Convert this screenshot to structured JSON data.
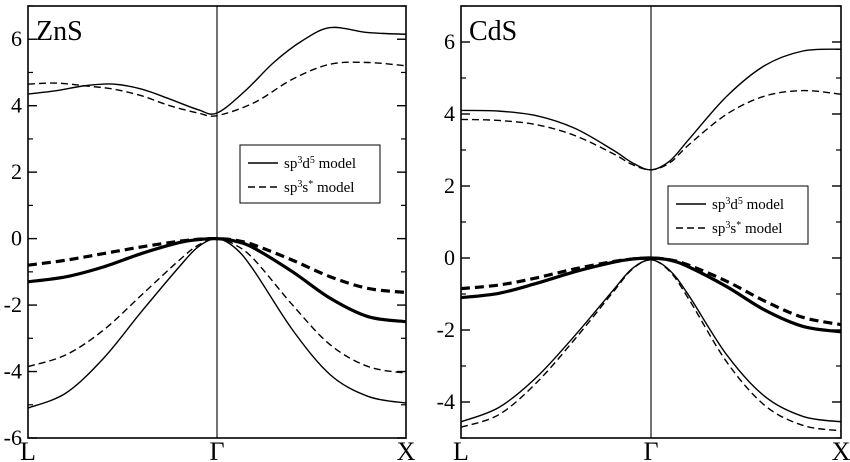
{
  "chart_data": [
    {
      "type": "line",
      "title": "ZnS",
      "xlabel": "",
      "ylabel": "",
      "ylim": [
        -6,
        7
      ],
      "yticks": [
        -6,
        -4,
        -2,
        0,
        2,
        4,
        6
      ],
      "xticks": [
        {
          "pos": 0,
          "label": "L"
        },
        {
          "pos": 1,
          "label": "Γ"
        },
        {
          "pos": 2,
          "label": "X"
        }
      ],
      "xlim": [
        0,
        2
      ],
      "legend_position": "center-right",
      "legend": [
        {
          "text_main": "sp",
          "sup1": "3",
          "text_mid": "d",
          "sup2": "5",
          "text_end": " model",
          "style": "solid"
        },
        {
          "text_main": "sp",
          "sup1": "3",
          "text_mid": "s",
          "sup2": "*",
          "text_end": " model",
          "style": "dashed"
        }
      ],
      "series": [
        {
          "style": "solid",
          "width": "thin",
          "x": [
            0,
            0.15,
            0.3,
            0.45,
            0.6,
            0.75,
            0.9,
            1.0,
            1.15,
            1.3,
            1.45,
            1.6,
            1.8,
            2.0
          ],
          "y": [
            4.35,
            4.45,
            4.6,
            4.65,
            4.5,
            4.2,
            3.88,
            3.78,
            4.45,
            5.3,
            5.95,
            6.35,
            6.2,
            6.15
          ]
        },
        {
          "style": "dashed",
          "width": "thin",
          "x": [
            0,
            0.15,
            0.3,
            0.45,
            0.6,
            0.75,
            0.9,
            1.0,
            1.2,
            1.4,
            1.6,
            1.8,
            2.0
          ],
          "y": [
            4.65,
            4.68,
            4.6,
            4.5,
            4.3,
            4.0,
            3.78,
            3.7,
            4.1,
            4.8,
            5.25,
            5.3,
            5.2
          ]
        },
        {
          "style": "dashed",
          "width": "thick",
          "x": [
            0,
            0.2,
            0.4,
            0.6,
            0.8,
            0.9,
            1.0,
            1.1,
            1.2,
            1.4,
            1.6,
            1.8,
            2.0
          ],
          "y": [
            -0.8,
            -0.65,
            -0.45,
            -0.25,
            -0.08,
            -0.02,
            0,
            -0.05,
            -0.2,
            -0.65,
            -1.15,
            -1.5,
            -1.62
          ]
        },
        {
          "style": "solid",
          "width": "thick",
          "x": [
            0,
            0.2,
            0.4,
            0.6,
            0.8,
            0.9,
            1.0,
            1.1,
            1.2,
            1.4,
            1.6,
            1.8,
            2.0
          ],
          "y": [
            -1.3,
            -1.15,
            -0.85,
            -0.45,
            -0.12,
            -0.03,
            0,
            -0.08,
            -0.3,
            -1.0,
            -1.8,
            -2.35,
            -2.5
          ]
        },
        {
          "style": "dashed",
          "width": "thin",
          "x": [
            0,
            0.2,
            0.4,
            0.6,
            0.8,
            0.9,
            1.0,
            1.1,
            1.2,
            1.4,
            1.6,
            1.8,
            2.0
          ],
          "y": [
            -3.85,
            -3.5,
            -2.75,
            -1.7,
            -0.65,
            -0.2,
            0,
            -0.2,
            -0.65,
            -2.0,
            -3.2,
            -3.85,
            -4.05
          ]
        },
        {
          "style": "solid",
          "width": "thin",
          "x": [
            0,
            0.2,
            0.4,
            0.6,
            0.8,
            0.9,
            1.0,
            1.1,
            1.2,
            1.4,
            1.6,
            1.8,
            2.0
          ],
          "y": [
            -5.1,
            -4.65,
            -3.6,
            -2.2,
            -0.85,
            -0.25,
            0,
            -0.3,
            -1.0,
            -2.75,
            -4.1,
            -4.75,
            -4.95
          ]
        }
      ]
    },
    {
      "type": "line",
      "title": "CdS",
      "xlabel": "",
      "ylabel": "",
      "ylim": [
        -5,
        7
      ],
      "yticks": [
        -4,
        -2,
        0,
        2,
        4,
        6
      ],
      "xticks": [
        {
          "pos": 0,
          "label": "L"
        },
        {
          "pos": 1,
          "label": "Γ"
        },
        {
          "pos": 2,
          "label": "X"
        }
      ],
      "xlim": [
        0,
        2
      ],
      "legend_position": "center-right",
      "legend": [
        {
          "text_main": "sp",
          "sup1": "3",
          "text_mid": "d",
          "sup2": "5",
          "text_end": " model",
          "style": "solid"
        },
        {
          "text_main": "sp",
          "sup1": "3",
          "text_mid": "s",
          "sup2": "*",
          "text_end": " model",
          "style": "dashed"
        }
      ],
      "series": [
        {
          "style": "solid",
          "width": "thin",
          "x": [
            0,
            0.2,
            0.4,
            0.6,
            0.8,
            0.9,
            1.0,
            1.1,
            1.2,
            1.4,
            1.6,
            1.8,
            2.0
          ],
          "y": [
            4.1,
            4.08,
            3.95,
            3.6,
            3.0,
            2.65,
            2.45,
            2.7,
            3.3,
            4.5,
            5.35,
            5.75,
            5.8
          ]
        },
        {
          "style": "dashed",
          "width": "thin",
          "x": [
            0,
            0.2,
            0.4,
            0.6,
            0.8,
            0.9,
            1.0,
            1.1,
            1.2,
            1.4,
            1.6,
            1.8,
            2.0
          ],
          "y": [
            3.85,
            3.82,
            3.7,
            3.4,
            2.9,
            2.6,
            2.45,
            2.65,
            3.15,
            4.0,
            4.5,
            4.65,
            4.55
          ]
        },
        {
          "style": "dashed",
          "width": "thick",
          "x": [
            0,
            0.2,
            0.4,
            0.6,
            0.8,
            0.9,
            1.0,
            1.1,
            1.2,
            1.4,
            1.6,
            1.8,
            2.0
          ],
          "y": [
            -0.85,
            -0.75,
            -0.55,
            -0.3,
            -0.1,
            -0.03,
            0,
            -0.05,
            -0.2,
            -0.65,
            -1.2,
            -1.65,
            -1.85
          ]
        },
        {
          "style": "solid",
          "width": "thick",
          "x": [
            0,
            0.2,
            0.4,
            0.6,
            0.8,
            0.9,
            1.0,
            1.1,
            1.2,
            1.4,
            1.6,
            1.8,
            2.0
          ],
          "y": [
            -1.1,
            -0.98,
            -0.7,
            -0.38,
            -0.12,
            -0.03,
            0,
            -0.06,
            -0.25,
            -0.8,
            -1.45,
            -1.9,
            -2.05
          ]
        },
        {
          "style": "solid",
          "width": "thin",
          "x": [
            0,
            0.2,
            0.4,
            0.6,
            0.8,
            0.9,
            1.0,
            1.1,
            1.2,
            1.4,
            1.6,
            1.8,
            2.0
          ],
          "y": [
            -4.55,
            -4.15,
            -3.3,
            -2.15,
            -0.9,
            -0.3,
            -0.05,
            -0.35,
            -1.05,
            -2.7,
            -3.85,
            -4.4,
            -4.55
          ]
        },
        {
          "style": "dashed",
          "width": "thin",
          "x": [
            0,
            0.2,
            0.4,
            0.6,
            0.8,
            0.9,
            1.0,
            1.1,
            1.2,
            1.4,
            1.6,
            1.8,
            2.0
          ],
          "y": [
            -4.7,
            -4.35,
            -3.45,
            -2.25,
            -0.95,
            -0.32,
            -0.05,
            -0.38,
            -1.15,
            -2.9,
            -4.1,
            -4.65,
            -4.8
          ]
        }
      ]
    }
  ]
}
